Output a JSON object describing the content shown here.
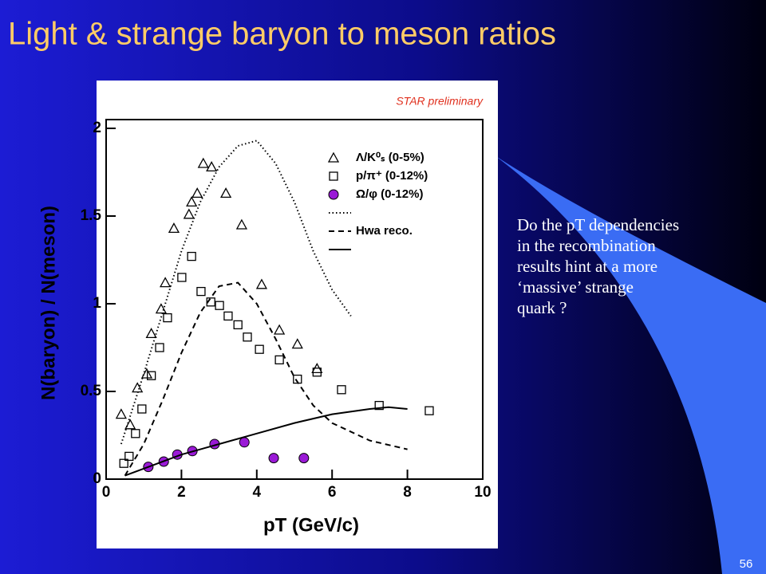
{
  "slide": {
    "title": "Light & strange baryon to meson ratios",
    "body_lines": [
      "Do the pT dependencies",
      "in the recombination",
      "results hint at a more",
      "‘massive’ strange",
      "quark ?"
    ],
    "page_number": "56"
  },
  "chart_data": {
    "type": "scatter",
    "annotation": "STAR preliminary",
    "x_label": "pT (GeV/c)",
    "y_label": "N(baryon) / N(meson)",
    "xlim": [
      0,
      10
    ],
    "ylim": [
      0,
      2.05
    ],
    "xticks": [
      0,
      2,
      4,
      6,
      8,
      10
    ],
    "yticks": [
      0,
      0.5,
      1,
      1.5,
      2
    ],
    "series": [
      {
        "name": "Λ/K⁰ₛ (0-5%)",
        "marker": "triangle",
        "color": "#000000",
        "x": [
          0.4,
          0.64,
          0.83,
          1.08,
          1.2,
          1.46,
          1.57,
          1.8,
          2.2,
          2.27,
          2.42,
          2.58,
          2.8,
          3.18,
          3.6,
          4.13,
          4.6,
          5.08,
          5.6
        ],
        "values": [
          0.37,
          0.31,
          0.52,
          0.6,
          0.83,
          0.97,
          1.12,
          1.43,
          1.51,
          1.58,
          1.63,
          1.8,
          1.78,
          1.63,
          1.45,
          1.11,
          0.85,
          0.77,
          0.63
        ]
      },
      {
        "name": "p/π⁺ (0-12%)",
        "marker": "square",
        "color": "#000000",
        "x": [
          0.47,
          0.61,
          0.78,
          0.95,
          1.2,
          1.42,
          1.63,
          2.01,
          2.27,
          2.52,
          2.78,
          3.01,
          3.24,
          3.5,
          3.75,
          4.07,
          4.6,
          5.08,
          5.6,
          6.25,
          7.25,
          8.58
        ],
        "values": [
          0.09,
          0.13,
          0.26,
          0.4,
          0.59,
          0.75,
          0.92,
          1.15,
          1.27,
          1.07,
          1.01,
          0.99,
          0.93,
          0.88,
          0.81,
          0.74,
          0.68,
          0.57,
          0.61,
          0.51,
          0.42,
          0.39
        ]
      },
      {
        "name": "Ω/φ (0-12%)",
        "marker": "circle",
        "color": "#9a1ad6",
        "x": [
          1.12,
          1.53,
          1.89,
          2.29,
          2.88,
          3.67,
          4.45,
          5.25
        ],
        "values": [
          0.07,
          0.1,
          0.14,
          0.16,
          0.2,
          0.21,
          0.12,
          0.12
        ]
      },
      {
        "style": "dotted",
        "color": "#000000",
        "x": [
          0.4,
          1,
          1.5,
          2,
          2.5,
          3,
          3.5,
          4,
          4.5,
          5,
          5.5,
          6,
          6.5
        ],
        "values": [
          0.2,
          0.6,
          0.95,
          1.3,
          1.58,
          1.78,
          1.9,
          1.93,
          1.8,
          1.58,
          1.3,
          1.08,
          0.93
        ]
      },
      {
        "name": "Hwa reco.",
        "style": "dashed",
        "color": "#000000",
        "x": [
          0.5,
          1,
          1.5,
          2,
          2.5,
          3,
          3.5,
          4,
          4.5,
          5,
          5.5,
          6,
          7,
          8
        ],
        "values": [
          0.02,
          0.2,
          0.45,
          0.72,
          0.95,
          1.1,
          1.12,
          1.0,
          0.8,
          0.58,
          0.42,
          0.32,
          0.22,
          0.17
        ]
      },
      {
        "style": "solid",
        "color": "#000000",
        "x": [
          0.5,
          1,
          2,
          3,
          4,
          5,
          6,
          7,
          7.5,
          8
        ],
        "values": [
          0.02,
          0.06,
          0.14,
          0.2,
          0.26,
          0.32,
          0.37,
          0.4,
          0.41,
          0.4
        ]
      }
    ]
  }
}
